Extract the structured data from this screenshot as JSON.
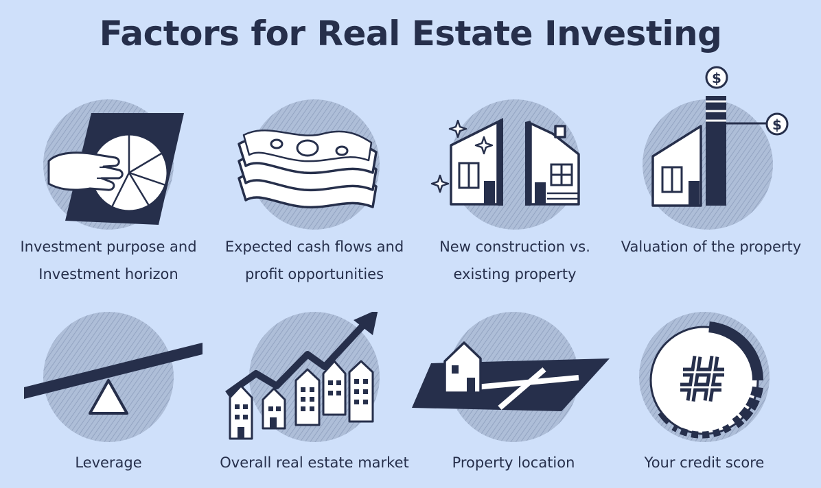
{
  "title": "Factors for Real Estate Investing",
  "factors": [
    {
      "line1": "Investment purpose and",
      "line2": "Investment horizon",
      "icon": "tablet-pie-chart-icon"
    },
    {
      "line1": "Expected cash flows and",
      "line2": "profit opportunities",
      "icon": "money-stack-icon"
    },
    {
      "line1": "New construction vs.",
      "line2": "existing property",
      "icon": "new-vs-old-house-icon"
    },
    {
      "line1": "Valuation of the property",
      "line2": "",
      "icon": "house-value-tower-icon"
    },
    {
      "line1": "Leverage",
      "line2": "",
      "icon": "seesaw-lever-icon"
    },
    {
      "line1": "Overall real estate market",
      "line2": "",
      "icon": "market-growth-houses-icon"
    },
    {
      "line1": "Property location",
      "line2": "",
      "icon": "house-on-map-icon"
    },
    {
      "line1": "Your credit score",
      "line2": "",
      "icon": "credit-score-gauge-icon"
    }
  ],
  "colors": {
    "background": "#cfe0fa",
    "ink": "#262f4b",
    "circle": "#a9b9d3",
    "fill": "#ffffff"
  }
}
